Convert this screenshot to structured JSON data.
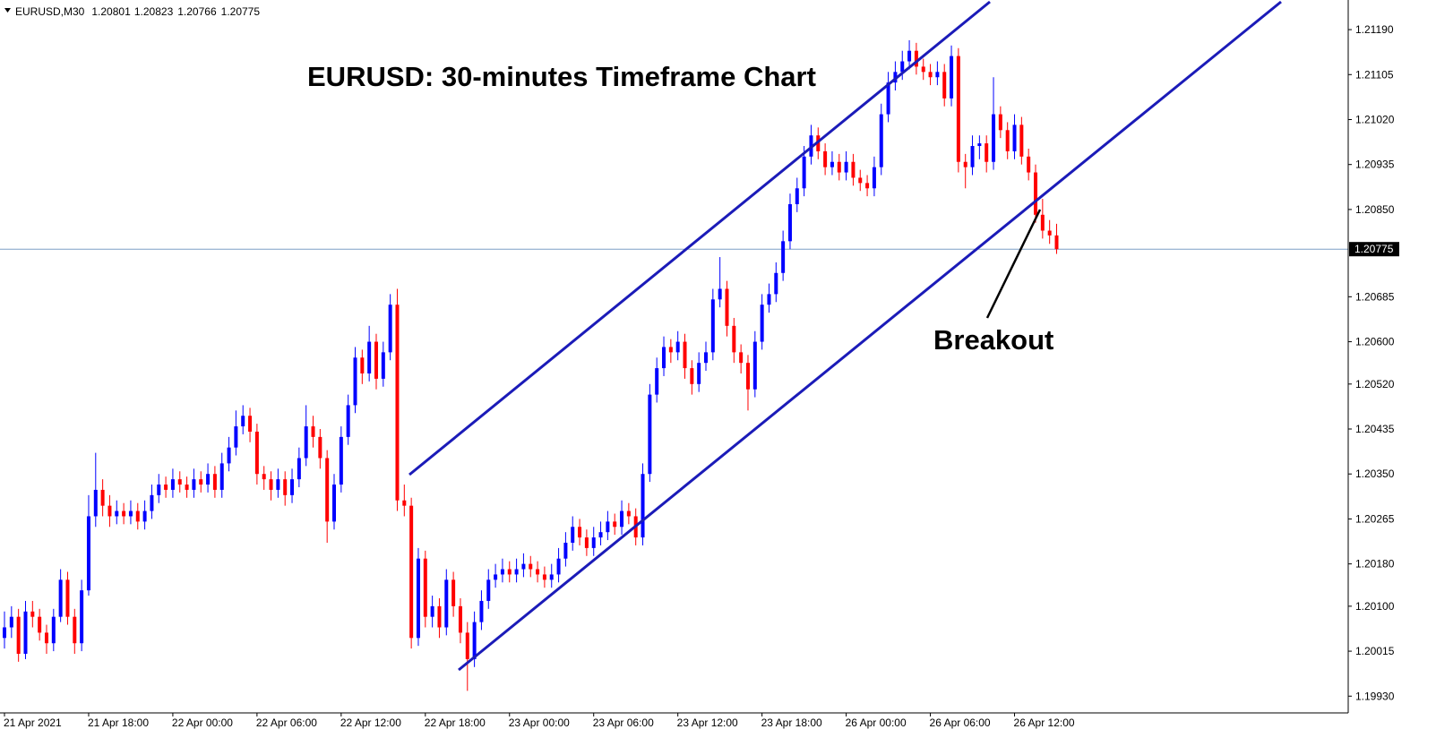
{
  "chart_data": {
    "type": "candlestick",
    "symbol": "EURUSD,M30",
    "title": "EURUSD: 30-minutes Timeframe Chart",
    "annotation": "Breakout",
    "colors": {
      "up": "#0000ff",
      "down": "#ff0000"
    },
    "ylim": [
      1.199,
      1.21246
    ],
    "yticks": [
      {
        "value": 1.2119,
        "label": "1.21190"
      },
      1.21105,
      {
        "value": 1.2102,
        "label": "1.21020"
      },
      1.20935,
      {
        "value": 1.2085,
        "label": "1.20850"
      },
      1.20685,
      {
        "value": 1.206,
        "label": "1.20600"
      },
      {
        "value": 1.2052,
        "label": "1.20520"
      },
      1.20435,
      {
        "value": 1.2035,
        "label": "1.20350"
      },
      1.20265,
      {
        "value": 1.2018,
        "label": "1.20180"
      },
      {
        "value": 1.201,
        "label": "1.20100"
      },
      1.20015,
      {
        "value": 1.1993,
        "label": "1.19930"
      }
    ],
    "price_line": 1.20775,
    "categories": [
      "21 Apr 2021",
      null,
      null,
      null,
      null,
      null,
      null,
      null,
      null,
      null,
      null,
      null,
      "21 Apr 18:00",
      null,
      null,
      null,
      null,
      null,
      null,
      null,
      null,
      null,
      null,
      null,
      "22 Apr 00:00",
      null,
      null,
      null,
      null,
      null,
      null,
      null,
      null,
      null,
      null,
      null,
      "22 Apr 06:00",
      null,
      null,
      null,
      null,
      null,
      null,
      null,
      null,
      null,
      null,
      null,
      "22 Apr 12:00",
      null,
      null,
      null,
      null,
      null,
      null,
      null,
      null,
      null,
      null,
      null,
      "22 Apr 18:00",
      null,
      null,
      null,
      null,
      null,
      null,
      null,
      null,
      null,
      null,
      null,
      "23 Apr 00:00",
      null,
      null,
      null,
      null,
      null,
      null,
      null,
      null,
      null,
      null,
      null,
      "23 Apr 06:00",
      null,
      null,
      null,
      null,
      null,
      null,
      null,
      null,
      null,
      null,
      null,
      "23 Apr 12:00",
      null,
      null,
      null,
      null,
      null,
      null,
      null,
      null,
      null,
      null,
      null,
      "23 Apr 18:00",
      null,
      null,
      null,
      null,
      null,
      null,
      null,
      null,
      null,
      null,
      null,
      "26 Apr 00:00",
      null,
      null,
      null,
      null,
      null,
      null,
      null,
      null,
      null,
      null,
      null,
      "26 Apr 06:00",
      null,
      null,
      null,
      null,
      null,
      null,
      null,
      null,
      null,
      null,
      null,
      "26 Apr 12:00",
      null,
      null,
      null,
      null,
      null,
      null
    ],
    "candles": [
      [
        1.2004,
        1.2009,
        1.2002,
        1.2006
      ],
      [
        1.2006,
        1.201,
        1.2004,
        1.2008
      ],
      [
        1.2008,
        1.20095,
        1.19995,
        1.2001
      ],
      [
        1.2001,
        1.2011,
        1.2,
        1.2009
      ],
      [
        1.2009,
        1.2011,
        1.2006,
        1.2008
      ],
      [
        1.2008,
        1.20095,
        1.20035,
        1.2005
      ],
      [
        1.2005,
        1.20065,
        1.2001,
        1.2003
      ],
      [
        1.2003,
        1.20095,
        1.20015,
        1.2008
      ],
      [
        1.2008,
        1.2017,
        1.2007,
        1.2015
      ],
      [
        1.2015,
        1.20165,
        1.20065,
        1.2008
      ],
      [
        1.2008,
        1.20095,
        1.2001,
        1.2003
      ],
      [
        1.2003,
        1.2015,
        1.20015,
        1.2013
      ],
      [
        1.2013,
        1.2031,
        1.2012,
        1.2027
      ],
      [
        1.2027,
        1.2039,
        1.2025,
        1.2032
      ],
      [
        1.2032,
        1.2034,
        1.2027,
        1.2029
      ],
      [
        1.2029,
        1.2031,
        1.2025,
        1.2027
      ],
      [
        1.2027,
        1.203,
        1.20255,
        1.2028
      ],
      [
        1.2028,
        1.20295,
        1.20255,
        1.2027
      ],
      [
        1.2027,
        1.203,
        1.20255,
        1.2028
      ],
      [
        1.2028,
        1.20295,
        1.20245,
        1.2026
      ],
      [
        1.2026,
        1.203,
        1.20245,
        1.2028
      ],
      [
        1.2028,
        1.2033,
        1.20265,
        1.2031
      ],
      [
        1.2031,
        1.2035,
        1.20295,
        1.2033
      ],
      [
        1.2033,
        1.20345,
        1.20305,
        1.2032
      ],
      [
        1.2032,
        1.2036,
        1.20305,
        1.2034
      ],
      [
        1.2034,
        1.20355,
        1.20315,
        1.2033
      ],
      [
        1.2033,
        1.20345,
        1.20305,
        1.2032
      ],
      [
        1.2032,
        1.2036,
        1.20305,
        1.2034
      ],
      [
        1.2034,
        1.20355,
        1.20315,
        1.2033
      ],
      [
        1.2033,
        1.2037,
        1.20315,
        1.2035
      ],
      [
        1.2035,
        1.20365,
        1.20305,
        1.2032
      ],
      [
        1.2032,
        1.2039,
        1.20305,
        1.2037
      ],
      [
        1.2037,
        1.2042,
        1.20355,
        1.204
      ],
      [
        1.204,
        1.2047,
        1.20385,
        1.2044
      ],
      [
        1.2044,
        1.2048,
        1.20425,
        1.2046
      ],
      [
        1.2046,
        1.20475,
        1.2041,
        1.2043
      ],
      [
        1.2043,
        1.20445,
        1.2033,
        1.2035
      ],
      [
        1.2035,
        1.20365,
        1.2032,
        1.2034
      ],
      [
        1.2034,
        1.20355,
        1.203,
        1.2032
      ],
      [
        1.2032,
        1.2036,
        1.20305,
        1.2034
      ],
      [
        1.2034,
        1.20355,
        1.2029,
        1.2031
      ],
      [
        1.2031,
        1.2036,
        1.20295,
        1.2034
      ],
      [
        1.2034,
        1.204,
        1.20325,
        1.2038
      ],
      [
        1.2038,
        1.2048,
        1.20365,
        1.2044
      ],
      [
        1.2044,
        1.2046,
        1.204,
        1.2042
      ],
      [
        1.2042,
        1.20435,
        1.2036,
        1.2038
      ],
      [
        1.2038,
        1.20395,
        1.2022,
        1.2026
      ],
      [
        1.2026,
        1.2035,
        1.20245,
        1.2033
      ],
      [
        1.2033,
        1.2044,
        1.20315,
        1.2042
      ],
      [
        1.2042,
        1.205,
        1.20405,
        1.2048
      ],
      [
        1.2048,
        1.2059,
        1.20465,
        1.2057
      ],
      [
        1.2057,
        1.20585,
        1.2052,
        1.2054
      ],
      [
        1.2054,
        1.2063,
        1.20525,
        1.206
      ],
      [
        1.206,
        1.20615,
        1.2051,
        1.2053
      ],
      [
        1.2053,
        1.206,
        1.20515,
        1.2058
      ],
      [
        1.2058,
        1.2069,
        1.20565,
        1.2067
      ],
      [
        1.2067,
        1.207,
        1.2028,
        1.203
      ],
      [
        1.203,
        1.2033,
        1.2027,
        1.2029
      ],
      [
        1.2029,
        1.20305,
        1.2002,
        1.2004
      ],
      [
        1.2004,
        1.2021,
        1.20025,
        1.2019
      ],
      [
        1.2019,
        1.20205,
        1.2006,
        1.2008
      ],
      [
        1.2008,
        1.2012,
        1.2006,
        1.201
      ],
      [
        1.201,
        1.20115,
        1.2004,
        1.2006
      ],
      [
        1.2006,
        1.2017,
        1.20045,
        1.2015
      ],
      [
        1.2015,
        1.20165,
        1.2008,
        1.201
      ],
      [
        1.201,
        1.20115,
        1.2003,
        1.2005
      ],
      [
        1.2005,
        1.2007,
        1.1994,
        1.2
      ],
      [
        1.2,
        1.2009,
        1.19985,
        1.2007
      ],
      [
        1.2007,
        1.2013,
        1.20055,
        1.2011
      ],
      [
        1.2011,
        1.2017,
        1.20095,
        1.2015
      ],
      [
        1.2015,
        1.2018,
        1.20135,
        1.2016
      ],
      [
        1.2016,
        1.2019,
        1.20145,
        1.2017
      ],
      [
        1.2017,
        1.20185,
        1.20145,
        1.2016
      ],
      [
        1.2016,
        1.2019,
        1.20145,
        1.2017
      ],
      [
        1.2017,
        1.202,
        1.20155,
        1.2018
      ],
      [
        1.2018,
        1.20195,
        1.20155,
        1.2017
      ],
      [
        1.2017,
        1.20185,
        1.20145,
        1.2016
      ],
      [
        1.2016,
        1.20175,
        1.20135,
        1.2015
      ],
      [
        1.2015,
        1.2018,
        1.20135,
        1.2016
      ],
      [
        1.2016,
        1.2021,
        1.20145,
        1.2019
      ],
      [
        1.2019,
        1.2024,
        1.20175,
        1.2022
      ],
      [
        1.2022,
        1.2027,
        1.20205,
        1.2025
      ],
      [
        1.2025,
        1.20265,
        1.20215,
        1.2023
      ],
      [
        1.2023,
        1.20245,
        1.20195,
        1.2021
      ],
      [
        1.2021,
        1.2025,
        1.20195,
        1.2023
      ],
      [
        1.2023,
        1.2026,
        1.20215,
        1.2024
      ],
      [
        1.2024,
        1.2028,
        1.20225,
        1.2026
      ],
      [
        1.2026,
        1.20275,
        1.20235,
        1.2025
      ],
      [
        1.2025,
        1.203,
        1.20235,
        1.2028
      ],
      [
        1.2028,
        1.20295,
        1.20255,
        1.2027
      ],
      [
        1.2027,
        1.20285,
        1.20215,
        1.2023
      ],
      [
        1.2023,
        1.2037,
        1.20215,
        1.2035
      ],
      [
        1.2035,
        1.2052,
        1.20335,
        1.205
      ],
      [
        1.205,
        1.2057,
        1.20485,
        1.2055
      ],
      [
        1.2055,
        1.2061,
        1.20535,
        1.2059
      ],
      [
        1.2059,
        1.20605,
        1.2056,
        1.2058
      ],
      [
        1.2058,
        1.2062,
        1.20565,
        1.206
      ],
      [
        1.206,
        1.20615,
        1.2053,
        1.2055
      ],
      [
        1.2055,
        1.20565,
        1.205,
        1.2052
      ],
      [
        1.2052,
        1.2058,
        1.20505,
        1.2056
      ],
      [
        1.2056,
        1.206,
        1.20545,
        1.2058
      ],
      [
        1.2058,
        1.207,
        1.20565,
        1.2068
      ],
      [
        1.2068,
        1.2076,
        1.20665,
        1.207
      ],
      [
        1.207,
        1.20715,
        1.2061,
        1.2063
      ],
      [
        1.2063,
        1.20645,
        1.2056,
        1.2058
      ],
      [
        1.2058,
        1.20595,
        1.2054,
        1.2056
      ],
      [
        1.2056,
        1.20575,
        1.2047,
        1.2051
      ],
      [
        1.2051,
        1.2062,
        1.20495,
        1.206
      ],
      [
        1.206,
        1.2069,
        1.20585,
        1.2067
      ],
      [
        1.2067,
        1.2071,
        1.20655,
        1.2069
      ],
      [
        1.2069,
        1.2075,
        1.20675,
        1.2073
      ],
      [
        1.2073,
        1.2081,
        1.20715,
        1.2079
      ],
      [
        1.2079,
        1.2088,
        1.20775,
        1.2086
      ],
      [
        1.2086,
        1.2091,
        1.20845,
        1.2089
      ],
      [
        1.2089,
        1.2097,
        1.20875,
        1.2095
      ],
      [
        1.2095,
        1.2101,
        1.20935,
        1.2099
      ],
      [
        1.2099,
        1.21005,
        1.20945,
        1.2096
      ],
      [
        1.2096,
        1.20975,
        1.20915,
        1.2093
      ],
      [
        1.2093,
        1.2096,
        1.20915,
        1.2094
      ],
      [
        1.2094,
        1.20955,
        1.20905,
        1.2092
      ],
      [
        1.2092,
        1.2096,
        1.20905,
        1.2094
      ],
      [
        1.2094,
        1.20955,
        1.20895,
        1.2091
      ],
      [
        1.2091,
        1.20925,
        1.20885,
        1.209
      ],
      [
        1.209,
        1.20915,
        1.20875,
        1.2089
      ],
      [
        1.2089,
        1.2095,
        1.20875,
        1.2093
      ],
      [
        1.2093,
        1.2105,
        1.20915,
        1.2103
      ],
      [
        1.2103,
        1.2111,
        1.21015,
        1.2109
      ],
      [
        1.2109,
        1.2113,
        1.21075,
        1.2111
      ],
      [
        1.2111,
        1.2115,
        1.21095,
        1.2113
      ],
      [
        1.2113,
        1.2117,
        1.21115,
        1.2115
      ],
      [
        1.2115,
        1.21165,
        1.21105,
        1.2112
      ],
      [
        1.2112,
        1.21135,
        1.21095,
        1.2111
      ],
      [
        1.2111,
        1.21125,
        1.21085,
        1.211
      ],
      [
        1.211,
        1.2113,
        1.21085,
        1.2111
      ],
      [
        1.2111,
        1.21125,
        1.21045,
        1.2106
      ],
      [
        1.2106,
        1.2116,
        1.21045,
        1.2114
      ],
      [
        1.2114,
        1.21155,
        1.2092,
        1.2094
      ],
      [
        1.2094,
        1.20955,
        1.2089,
        1.2093
      ],
      [
        1.2093,
        1.2099,
        1.20915,
        1.2097
      ],
      [
        1.2097,
        1.2099,
        1.20945,
        1.20975
      ],
      [
        1.20975,
        1.2099,
        1.2092,
        1.2094
      ],
      [
        1.2094,
        1.211,
        1.20925,
        1.2103
      ],
      [
        1.2103,
        1.21045,
        1.20985,
        1.21
      ],
      [
        1.21,
        1.21015,
        1.20945,
        1.2096
      ],
      [
        1.2096,
        1.2103,
        1.20945,
        1.2101
      ],
      [
        1.2101,
        1.21025,
        1.20935,
        1.2095
      ],
      [
        1.2095,
        1.20965,
        1.20905,
        1.2092
      ],
      [
        1.2092,
        1.20935,
        1.20825,
        1.2084
      ],
      [
        1.2084,
        1.2087,
        1.20795,
        1.2081
      ],
      [
        1.2081,
        1.2083,
        1.20785,
        1.20801
      ],
      [
        1.20801,
        1.20823,
        1.20766,
        1.20775
      ]
    ]
  }
}
